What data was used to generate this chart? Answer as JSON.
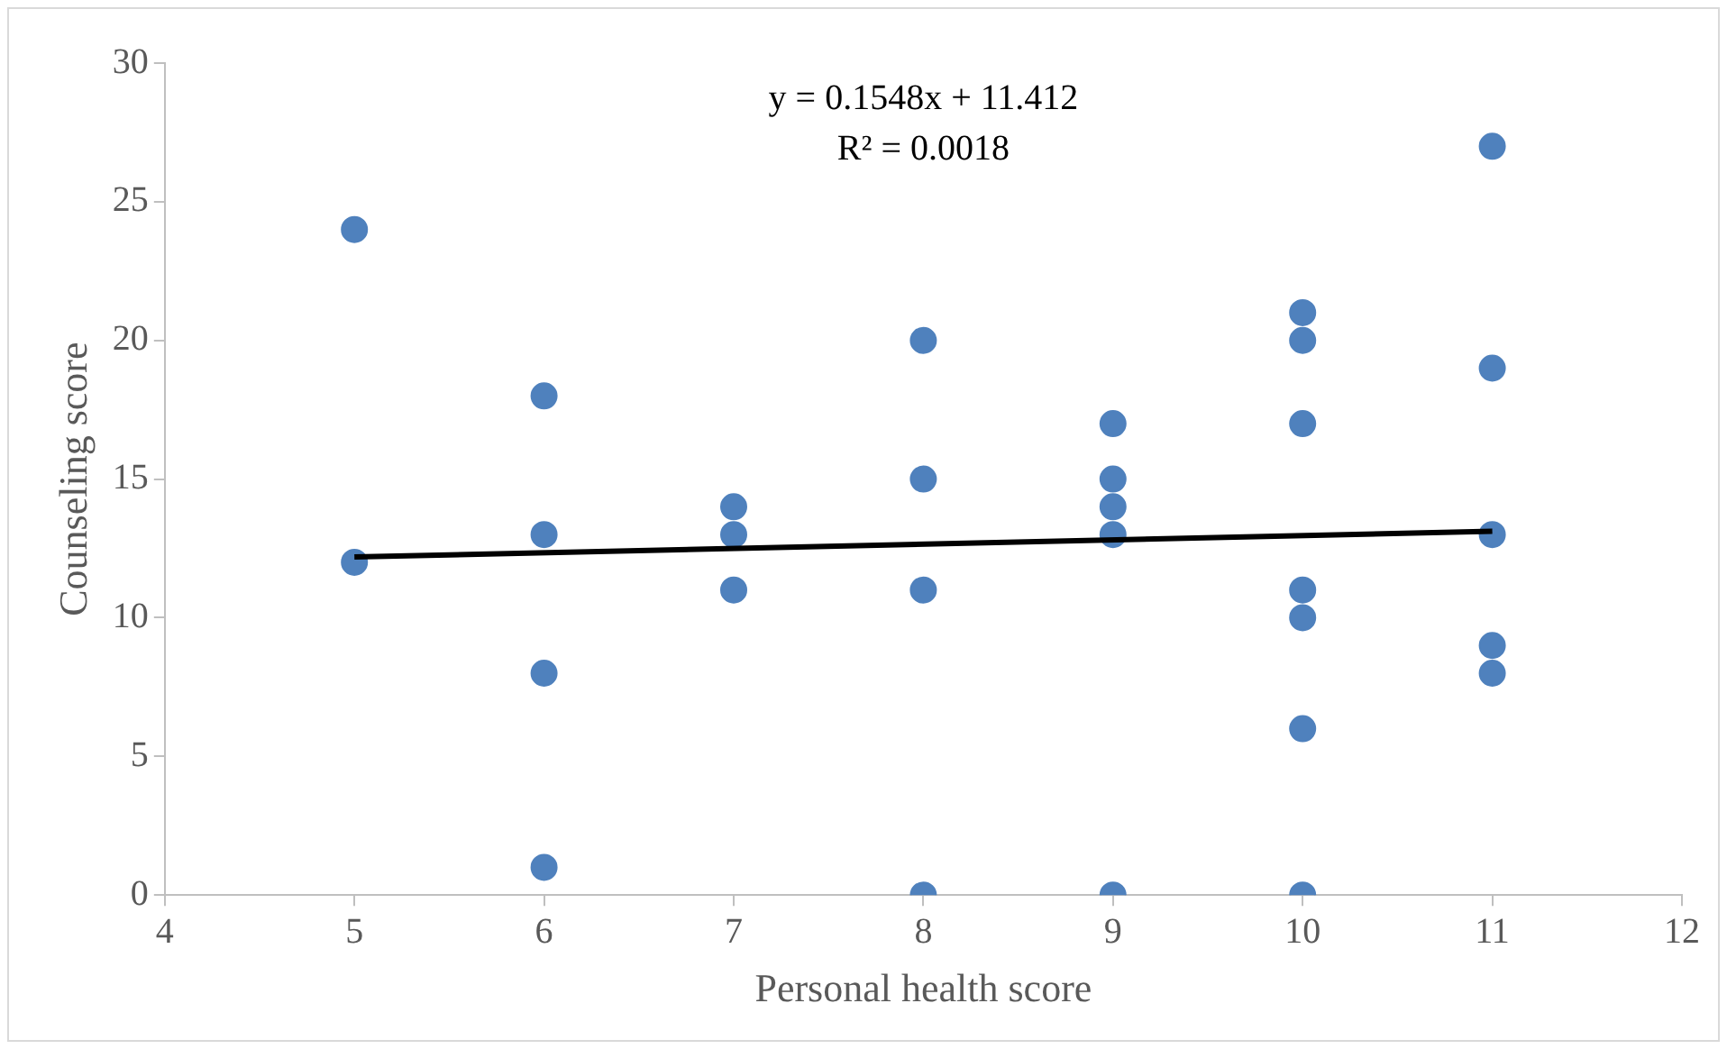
{
  "chart_data": {
    "type": "scatter",
    "xlabel": "Personal health score",
    "ylabel": "Counseling score",
    "annotations": [
      "y = 0.1548x + 11.412",
      "R² = 0.0018"
    ],
    "series": [
      {
        "color": "#4f81bd",
        "x": [
          5,
          5,
          6,
          6,
          6,
          6,
          7,
          7,
          7,
          8,
          8,
          8,
          8,
          9,
          9,
          9,
          9,
          9,
          10,
          10,
          10,
          10,
          10,
          10,
          10,
          11,
          11,
          11,
          11,
          11
        ],
        "values": [
          24,
          12,
          18,
          13,
          8,
          1,
          14,
          13,
          11,
          20,
          15,
          11,
          0,
          17,
          15,
          14,
          13,
          0,
          21,
          20,
          17,
          11,
          10,
          6,
          0,
          27,
          19,
          13,
          9,
          8
        ]
      },
      {
        "type": "line",
        "color": "#000000",
        "x": [
          5,
          11
        ],
        "values": [
          12.19,
          13.12
        ],
        "marker": "none"
      }
    ],
    "xlim": [
      4,
      12
    ],
    "xticks": [
      4,
      5,
      6,
      7,
      8,
      9,
      10,
      11,
      12
    ],
    "ylim": [
      0,
      30
    ],
    "yticks": [
      0,
      5,
      10,
      15,
      20,
      25,
      30
    ],
    "grid": false,
    "legend": false,
    "marker": "circle"
  }
}
